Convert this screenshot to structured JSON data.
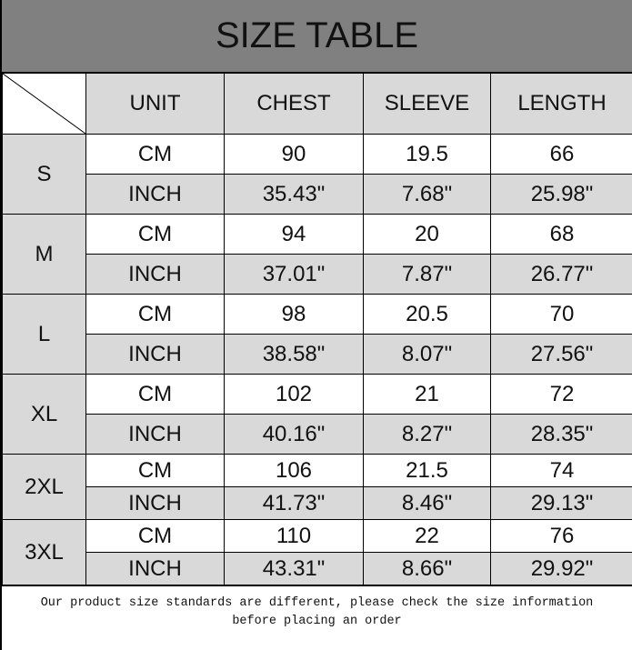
{
  "title": "SIZE TABLE",
  "headers": [
    "UNIT",
    "CHEST",
    "SLEEVE",
    "LENGTH"
  ],
  "rows": [
    {
      "size": "S",
      "cm": {
        "unit": "CM",
        "chest": "90",
        "sleeve": "19.5",
        "length": "66"
      },
      "inch": {
        "unit": "INCH",
        "chest": "35.43\"",
        "sleeve": "7.68\"",
        "length": "25.98\""
      }
    },
    {
      "size": "M",
      "cm": {
        "unit": "CM",
        "chest": "94",
        "sleeve": "20",
        "length": "68"
      },
      "inch": {
        "unit": "INCH",
        "chest": "37.01\"",
        "sleeve": "7.87\"",
        "length": "26.77\""
      }
    },
    {
      "size": "L",
      "cm": {
        "unit": "CM",
        "chest": "98",
        "sleeve": "20.5",
        "length": "70"
      },
      "inch": {
        "unit": "INCH",
        "chest": "38.58\"",
        "sleeve": "8.07\"",
        "length": "27.56\""
      }
    },
    {
      "size": "XL",
      "cm": {
        "unit": "CM",
        "chest": "102",
        "sleeve": "21",
        "length": "72"
      },
      "inch": {
        "unit": "INCH",
        "chest": "40.16\"",
        "sleeve": "8.27\"",
        "length": "28.35\""
      }
    },
    {
      "size": "2XL",
      "cm": {
        "unit": "CM",
        "chest": "106",
        "sleeve": "21.5",
        "length": "74"
      },
      "inch": {
        "unit": "INCH",
        "chest": "41.73\"",
        "sleeve": "8.46\"",
        "length": "29.13\""
      }
    },
    {
      "size": "3XL",
      "cm": {
        "unit": "CM",
        "chest": "110",
        "sleeve": "22",
        "length": "76"
      },
      "inch": {
        "unit": "INCH",
        "chest": "43.31\"",
        "sleeve": "8.66\"",
        "length": "29.92\""
      }
    }
  ],
  "footer": {
    "line1": "Our product size standards are different, please check the size information",
    "line2": "before placing an order"
  },
  "colors": {
    "title_bg": "#808080",
    "cell_gray": "#d9d9d9"
  }
}
